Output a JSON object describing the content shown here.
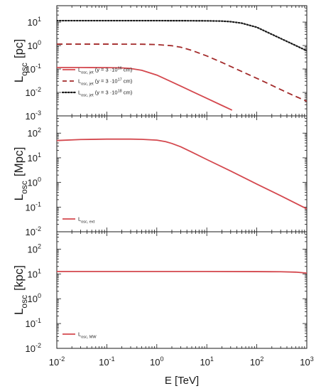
{
  "chart_data": [
    {
      "type": "line",
      "panel": "top",
      "xscale": "log",
      "yscale": "log",
      "xlim": [
        0.01,
        1000
      ],
      "ylim": [
        0.001,
        50
      ],
      "ylabel_main": "L",
      "ylabel_sub": "osc",
      "ylabel_unit": "[pc]",
      "yticks": [
        {
          "base": "10",
          "exp": "-3",
          "value": 0.001
        },
        {
          "base": "10",
          "exp": "-2",
          "value": 0.01
        },
        {
          "base": "10",
          "exp": "-1",
          "value": 0.1
        },
        {
          "base": "10",
          "exp": "0",
          "value": 1
        },
        {
          "base": "10",
          "exp": "1",
          "value": 10
        }
      ],
      "legend_position": "bottom-left",
      "series": [
        {
          "name_main": "L",
          "name_sub": "osc, jet",
          "name_note_pre": " (y = 3 ·10",
          "name_note_exp": "16",
          "name_note_post": " cm)",
          "style": "solid",
          "color": "#d4484e",
          "x": [
            0.01,
            0.03,
            0.1,
            0.2,
            0.3,
            0.5,
            1,
            2,
            5,
            10,
            20,
            32
          ],
          "y": [
            0.115,
            0.115,
            0.114,
            0.111,
            0.105,
            0.088,
            0.055,
            0.028,
            0.0112,
            0.0056,
            0.0028,
            0.00175
          ]
        },
        {
          "name_main": "L",
          "name_sub": "osc, jet",
          "name_note_pre": " (y = 3 ·10",
          "name_note_exp": "17",
          "name_note_post": " cm)",
          "style": "dashed",
          "color": "#a32a2a",
          "x": [
            0.01,
            0.1,
            0.5,
            1,
            2,
            3,
            5,
            10,
            20,
            50,
            100,
            200,
            500,
            1000
          ],
          "y": [
            1.15,
            1.15,
            1.14,
            1.1,
            0.98,
            0.85,
            0.62,
            0.36,
            0.19,
            0.078,
            0.04,
            0.02,
            0.008,
            0.0042
          ]
        },
        {
          "name_main": "L",
          "name_sub": "osc, jet",
          "name_note_pre": " (y = 3 ·10",
          "name_note_exp": "18",
          "name_note_post": " cm)",
          "style": "dotted",
          "color": "#1a1a1a",
          "x": [
            0.01,
            0.1,
            1,
            5,
            10,
            20,
            30,
            50,
            100,
            200,
            500,
            1000
          ],
          "y": [
            11.5,
            11.5,
            11.5,
            11.4,
            11.3,
            11,
            10.4,
            9,
            6,
            3,
            1.2,
            0.6
          ]
        }
      ]
    },
    {
      "type": "line",
      "panel": "middle",
      "xscale": "log",
      "yscale": "log",
      "xlim": [
        0.01,
        1000
      ],
      "ylim": [
        0.01,
        500
      ],
      "ylabel_main": "L",
      "ylabel_sub": "osc",
      "ylabel_unit": "[Mpc]",
      "yticks": [
        {
          "base": "10",
          "exp": "-2",
          "value": 0.01
        },
        {
          "base": "10",
          "exp": "-1",
          "value": 0.1
        },
        {
          "base": "10",
          "exp": "0",
          "value": 1
        },
        {
          "base": "10",
          "exp": "1",
          "value": 10
        },
        {
          "base": "10",
          "exp": "2",
          "value": 100
        }
      ],
      "legend_position": "bottom-left",
      "series": [
        {
          "name_main": "L",
          "name_sub": "osc, ext",
          "style": "solid",
          "color": "#d4484e",
          "x": [
            0.01,
            0.03,
            0.1,
            0.3,
            0.5,
            1,
            1.5,
            2,
            3,
            5,
            10,
            30,
            100,
            300,
            1000
          ],
          "y": [
            50,
            55,
            57,
            57,
            56,
            52,
            45,
            38,
            28,
            17,
            8.5,
            2.9,
            0.86,
            0.29,
            0.085
          ]
        }
      ]
    },
    {
      "type": "line",
      "panel": "bottom",
      "xscale": "log",
      "yscale": "log",
      "xlim": [
        0.01,
        1000
      ],
      "ylim": [
        0.01,
        500
      ],
      "ylabel_main": "L",
      "ylabel_sub": "osc",
      "ylabel_unit": "[kpc]",
      "xlabel": "E [TeV]",
      "yticks": [
        {
          "base": "10",
          "exp": "-2",
          "value": 0.01
        },
        {
          "base": "10",
          "exp": "-1",
          "value": 0.1
        },
        {
          "base": "10",
          "exp": "0",
          "value": 1
        },
        {
          "base": "10",
          "exp": "1",
          "value": 10
        },
        {
          "base": "10",
          "exp": "2",
          "value": 100
        }
      ],
      "xticks": [
        {
          "base": "10",
          "exp": "-2",
          "value": 0.01
        },
        {
          "base": "10",
          "exp": "-1",
          "value": 0.1
        },
        {
          "base": "10",
          "exp": "0",
          "value": 1
        },
        {
          "base": "10",
          "exp": "1",
          "value": 10
        },
        {
          "base": "10",
          "exp": "2",
          "value": 100
        },
        {
          "base": "10",
          "exp": "3",
          "value": 1000
        }
      ],
      "legend_position": "bottom-left",
      "series": [
        {
          "name_main": "L",
          "name_sub": "osc, MW",
          "style": "solid",
          "color": "#d4484e",
          "x": [
            0.01,
            1,
            10,
            100,
            300,
            600,
            1000
          ],
          "y": [
            12.5,
            12.5,
            12.5,
            12.4,
            12.2,
            11.8,
            10.8
          ]
        }
      ]
    }
  ]
}
